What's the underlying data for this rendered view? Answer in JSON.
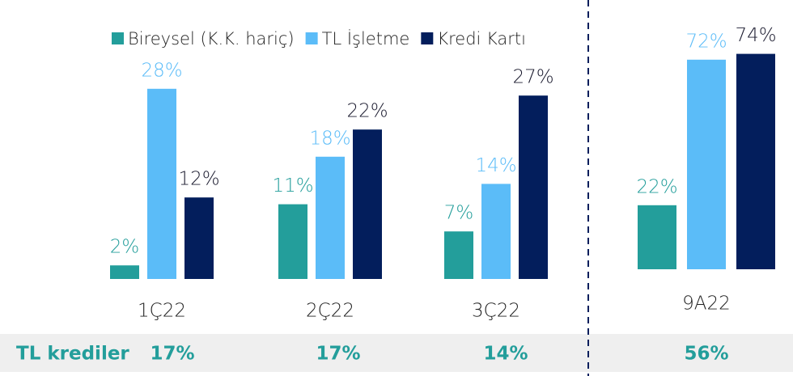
{
  "chart_data": {
    "type": "bar",
    "categories": [
      "1Ç22",
      "2Ç22",
      "3Ç22",
      "9A22"
    ],
    "series": [
      {
        "name": "Bireysel (K.K. hariç)",
        "color": "#239e9b",
        "values": [
          2,
          11,
          7,
          22
        ],
        "value_labels": [
          "2%",
          "11%",
          "7%",
          "22%"
        ]
      },
      {
        "name": "TL İşletme",
        "color": "#5bbcf8",
        "values": [
          28,
          18,
          14,
          72
        ],
        "value_labels": [
          "28%",
          "18%",
          "14%",
          "72%"
        ]
      },
      {
        "name": "Kredi Kartı",
        "color": "#031e5c",
        "values": [
          12,
          22,
          27,
          74
        ],
        "value_labels": [
          "12%",
          "22%",
          "27%",
          "74%"
        ]
      }
    ],
    "legend": "top",
    "summary_row": {
      "label": "TL krediler",
      "values": [
        "17%",
        "17%",
        "14%",
        "56%"
      ]
    }
  }
}
